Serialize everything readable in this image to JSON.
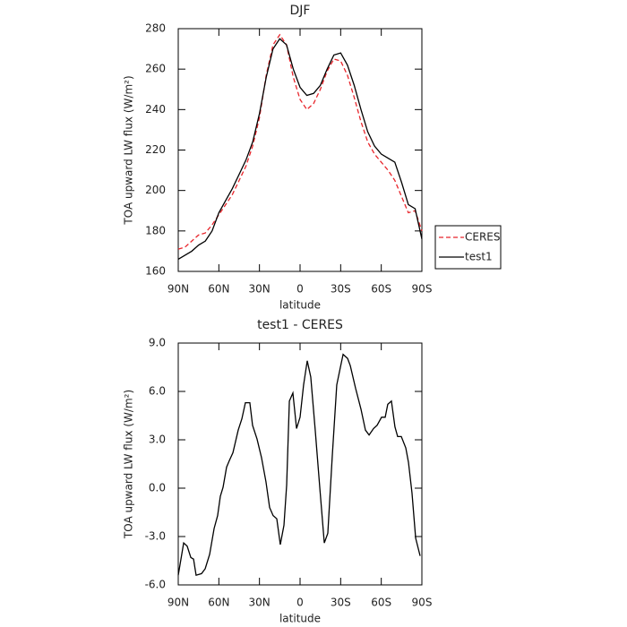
{
  "chart_data": [
    {
      "type": "line",
      "title": "DJF",
      "xlabel": "latitude",
      "ylabel": "TOA upward LW flux (W/m²)",
      "x": [
        90,
        85,
        80,
        75,
        70,
        65,
        60,
        55,
        50,
        45,
        40,
        35,
        30,
        25,
        20,
        15,
        10,
        5,
        0,
        -5,
        -10,
        -15,
        -20,
        -25,
        -30,
        -35,
        -40,
        -45,
        -50,
        -55,
        -60,
        -65,
        -70,
        -75,
        -80,
        -85,
        -90
      ],
      "series": [
        {
          "name": "CERES",
          "color": "#e8252b",
          "dash": true,
          "values": [
            171,
            172,
            175,
            178,
            179,
            183,
            188,
            193,
            198,
            205,
            212,
            222,
            236,
            257,
            272,
            277,
            272,
            256,
            245,
            240,
            243,
            250,
            259,
            265,
            264,
            257,
            246,
            234,
            224,
            218,
            214,
            210,
            205,
            197,
            189,
            190,
            180
          ]
        },
        {
          "name": "test1",
          "color": "#000000",
          "dash": false,
          "values": [
            166,
            168,
            170,
            173,
            175,
            180,
            189,
            195,
            201,
            208,
            215,
            224,
            238,
            256,
            270,
            275,
            272,
            260,
            251,
            247,
            248,
            252,
            260,
            267,
            268,
            262,
            252,
            240,
            229,
            222,
            218,
            216,
            214,
            204,
            193,
            191,
            176
          ]
        }
      ],
      "xlim": [
        90,
        -90
      ],
      "ylim": [
        160,
        280
      ],
      "xticks": [
        {
          "value": 90,
          "label": "90N"
        },
        {
          "value": 60,
          "label": "60N"
        },
        {
          "value": 30,
          "label": "30N"
        },
        0,
        {
          "value": -30,
          "label": "30S"
        },
        {
          "value": -60,
          "label": "60S"
        },
        {
          "value": -90,
          "label": "90S"
        }
      ],
      "yticks": [
        160,
        180,
        200,
        220,
        240,
        260,
        280
      ],
      "legend": "right"
    },
    {
      "type": "line",
      "title": "test1 - CERES",
      "xlabel": "latitude",
      "ylabel": "TOA upward LW flux (W/m²)",
      "x": [
        90,
        86,
        83.4,
        80.7,
        78.7,
        76.8,
        72.8,
        70.1,
        66.8,
        63.5,
        60.9,
        58.9,
        56.9,
        54.3,
        52.3,
        49.6,
        45.7,
        43,
        40.4,
        37.1,
        35.1,
        31.8,
        28.5,
        25.2,
        22.5,
        19.9,
        17.2,
        14.6,
        11.9,
        9.9,
        7.9,
        5.3,
        2.6,
        0,
        -2.6,
        -5.3,
        -7.9,
        -11.2,
        -14.6,
        -17.9,
        -20.5,
        -23.8,
        -27.1,
        -29.8,
        -31.8,
        -35.1,
        -37.1,
        -41,
        -45,
        -48.3,
        -51,
        -54.3,
        -56.9,
        -60.2,
        -62.9,
        -64.8,
        -67.5,
        -70.1,
        -72.1,
        -74.8,
        -78.1,
        -80.1,
        -82.7,
        -85.4,
        -88.7
      ],
      "series": [
        {
          "color": "#000000",
          "dash": false,
          "values": [
            -5.4,
            -3.4,
            -3.6,
            -4.3,
            -4.4,
            -5.4,
            -5.3,
            -5.0,
            -4.1,
            -2.5,
            -1.7,
            -0.5,
            0.05,
            1.3,
            1.7,
            2.2,
            3.6,
            4.3,
            5.3,
            5.3,
            3.9,
            3.05,
            1.9,
            0.4,
            -1.2,
            -1.7,
            -1.9,
            -3.5,
            -2.3,
            0.2,
            5.4,
            5.9,
            3.7,
            4.4,
            6.4,
            7.9,
            6.9,
            3.6,
            0.0,
            -3.4,
            -2.8,
            2.0,
            6.4,
            7.5,
            8.3,
            8.05,
            7.6,
            6.2,
            4.9,
            3.6,
            3.3,
            3.7,
            3.9,
            4.4,
            4.4,
            5.2,
            5.4,
            3.8,
            3.2,
            3.2,
            2.5,
            1.6,
            -0.3,
            -3.1,
            -4.2
          ]
        }
      ],
      "xlim": [
        90,
        -90
      ],
      "ylim": [
        -6,
        9
      ],
      "xticks": [
        {
          "value": 90,
          "label": "90N"
        },
        {
          "value": 60,
          "label": "60N"
        },
        {
          "value": 30,
          "label": "30N"
        },
        0,
        {
          "value": -30,
          "label": "30S"
        },
        {
          "value": -60,
          "label": "60S"
        },
        {
          "value": -90,
          "label": "90S"
        }
      ],
      "yticks": [
        {
          "value": -6,
          "label": "-6.0"
        },
        {
          "value": -3,
          "label": "-3.0"
        },
        {
          "value": 0,
          "label": "0.0"
        },
        {
          "value": 3,
          "label": "3.0"
        },
        {
          "value": 6,
          "label": "6.0"
        },
        {
          "value": 9,
          "label": "9.0"
        }
      ]
    }
  ]
}
